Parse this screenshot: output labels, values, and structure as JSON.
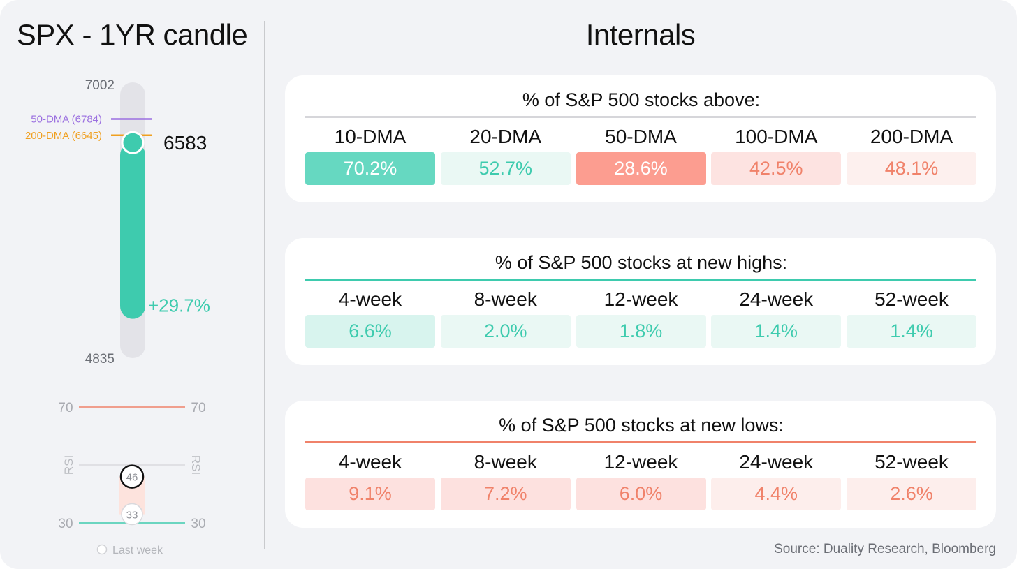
{
  "left_panel": {
    "title": "SPX - 1YR candle"
  },
  "right_panel": {
    "title": "Internals"
  },
  "chart_data": [
    {
      "type": "candle",
      "title": "SPX - 1YR candle",
      "high": 7002,
      "low": 4835,
      "open": 5076,
      "close": 6583,
      "close_label": "6583",
      "high_label": "7002",
      "low_label": "4835",
      "change_label": "+29.7%",
      "moving_averages": [
        {
          "name": "50-DMA",
          "value": 6784,
          "label": "50-DMA (6784)",
          "color": "#9b6fe0"
        },
        {
          "name": "200-DMA",
          "value": 6645,
          "label": "200-DMA (6645)",
          "color": "#f0a020"
        }
      ],
      "colors": {
        "body": "#3ecbae",
        "range": "#e3e3e8",
        "change_text": "#3ecbae"
      }
    },
    {
      "type": "rsi",
      "axis_label": "RSI",
      "upper": 70,
      "lower": 30,
      "upper_label": "70",
      "lower_label": "30",
      "current": 46,
      "current_label": "46",
      "previous": 33,
      "previous_label": "33",
      "legend_label": "Last week",
      "ylim": [
        30,
        70
      ],
      "colors": {
        "upper_line": "#f0826a",
        "lower_line": "#3ecbae",
        "mid_line": "#d9d9dd",
        "band": "#fde3dd"
      }
    }
  ],
  "tables": [
    {
      "title": "% of S&P 500 stocks above:",
      "rule_color": "#d6d6da",
      "columns": [
        {
          "label": "10-DMA",
          "value": "70.2%",
          "bg": "#66d8c1",
          "fg": "#ffffff"
        },
        {
          "label": "20-DMA",
          "value": "52.7%",
          "bg": "#eaf8f4",
          "fg": "#3ecbae"
        },
        {
          "label": "50-DMA",
          "value": "28.6%",
          "bg": "#fc9d90",
          "fg": "#ffffff"
        },
        {
          "label": "100-DMA",
          "value": "42.5%",
          "bg": "#fde3e1",
          "fg": "#f0826a"
        },
        {
          "label": "200-DMA",
          "value": "48.1%",
          "bg": "#fdf0ee",
          "fg": "#f0826a"
        }
      ]
    },
    {
      "title": "% of S&P 500 stocks at new highs:",
      "rule_color": "#3ecbae",
      "columns": [
        {
          "label": "4-week",
          "value": "6.6%",
          "bg": "#d8f4ee",
          "fg": "#3ecbae"
        },
        {
          "label": "8-week",
          "value": "2.0%",
          "bg": "#eaf8f4",
          "fg": "#3ecbae"
        },
        {
          "label": "12-week",
          "value": "1.8%",
          "bg": "#eaf8f4",
          "fg": "#3ecbae"
        },
        {
          "label": "24-week",
          "value": "1.4%",
          "bg": "#eaf8f4",
          "fg": "#3ecbae"
        },
        {
          "label": "52-week",
          "value": "1.4%",
          "bg": "#eaf8f4",
          "fg": "#3ecbae"
        }
      ]
    },
    {
      "title": "% of S&P 500 stocks at new lows:",
      "rule_color": "#f0826a",
      "columns": [
        {
          "label": "4-week",
          "value": "9.1%",
          "bg": "#fde1df",
          "fg": "#f0826a"
        },
        {
          "label": "8-week",
          "value": "7.2%",
          "bg": "#fde1df",
          "fg": "#f0826a"
        },
        {
          "label": "12-week",
          "value": "6.0%",
          "bg": "#fde1df",
          "fg": "#f0826a"
        },
        {
          "label": "24-week",
          "value": "4.4%",
          "bg": "#fdeeec",
          "fg": "#f0826a"
        },
        {
          "label": "52-week",
          "value": "2.6%",
          "bg": "#fdeeec",
          "fg": "#f0826a"
        }
      ]
    }
  ],
  "footer": {
    "source": "Source: Duality Research, Bloomberg"
  }
}
